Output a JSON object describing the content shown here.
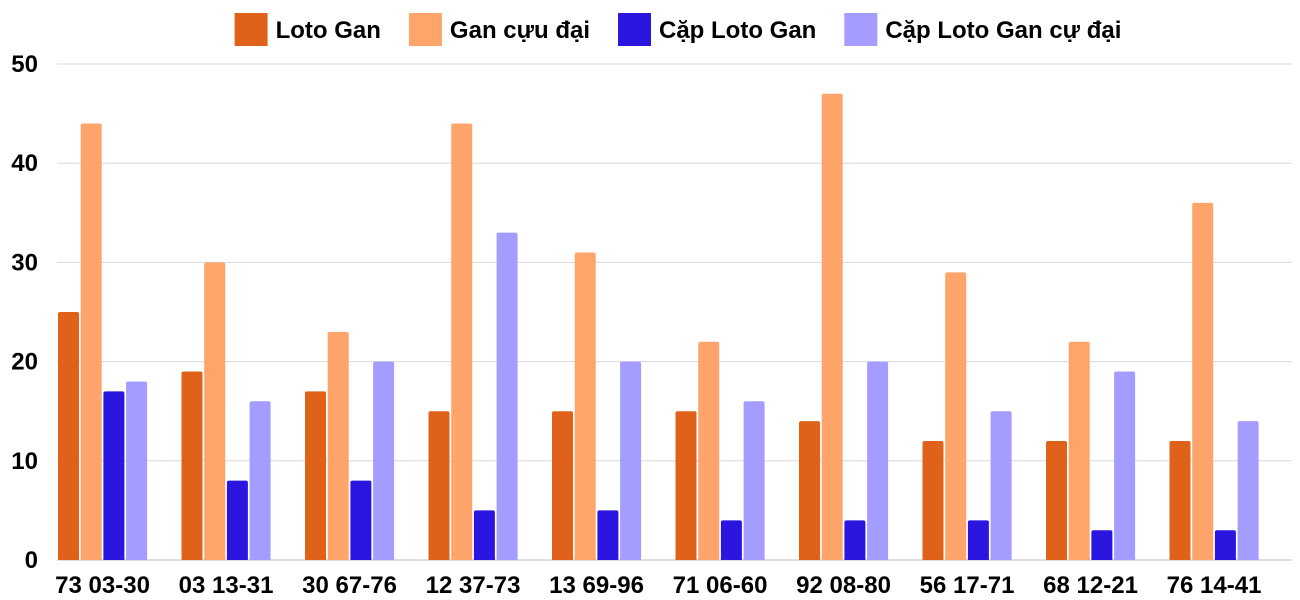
{
  "chart_data": {
    "type": "bar",
    "title": "",
    "xlabel": "",
    "ylabel": "",
    "ylim": [
      0,
      50
    ],
    "yticks": [
      0,
      10,
      20,
      30,
      40,
      50
    ],
    "grid": true,
    "legend_position": "top-center",
    "categories": [
      "73 03-30",
      "03 13-31",
      "30 67-76",
      "12 37-73",
      "13 69-96",
      "71 06-60",
      "92 08-80",
      "56 17-71",
      "68 12-21",
      "76 14-41"
    ],
    "series": [
      {
        "name": "Loto Gan",
        "color": "#e0621a",
        "values": [
          25,
          19,
          17,
          15,
          15,
          15,
          14,
          12,
          12,
          12
        ]
      },
      {
        "name": "Gan cựu đại",
        "color": "#ffa56b",
        "values": [
          44,
          30,
          23,
          44,
          31,
          22,
          47,
          29,
          22,
          36
        ]
      },
      {
        "name": "Cặp Loto Gan",
        "color": "#2b16e0",
        "values": [
          17,
          8,
          8,
          5,
          5,
          4,
          4,
          4,
          3,
          3
        ]
      },
      {
        "name": "Cặp Loto Gan cự đại",
        "color": "#a59cff",
        "values": [
          18,
          16,
          20,
          33,
          20,
          16,
          20,
          15,
          19,
          14
        ]
      }
    ]
  }
}
